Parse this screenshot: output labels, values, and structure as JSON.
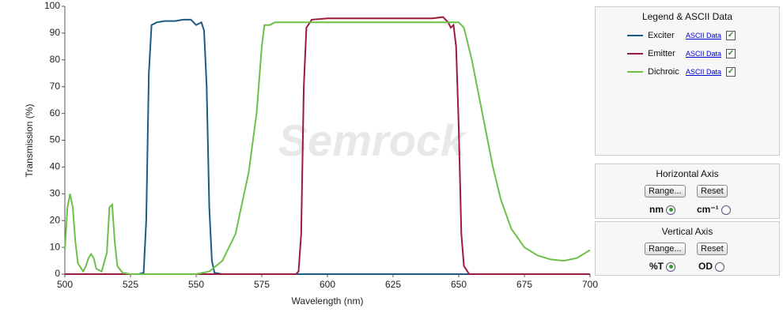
{
  "chart_data": {
    "type": "line",
    "xlabel": "Wavelength (nm)",
    "ylabel": "Transmission (%)",
    "watermark": "Semrock",
    "xlim": [
      500,
      700
    ],
    "xticks": [
      500,
      525,
      550,
      575,
      600,
      625,
      650,
      675,
      700
    ],
    "ylim": [
      0,
      100
    ],
    "yticks": [
      0,
      10,
      20,
      30,
      40,
      50,
      60,
      70,
      80,
      90,
      100
    ],
    "grid": false,
    "series": [
      {
        "name": "Exciter",
        "color": "#1b5a86",
        "x": [
          500,
          528,
          530,
          531,
          532,
          533,
          535,
          538,
          540,
          542,
          545,
          548,
          550,
          551,
          552,
          553,
          554,
          555,
          556,
          557,
          560,
          700
        ],
        "values": [
          0,
          0,
          0.5,
          20,
          75,
          93,
          94,
          94.5,
          94.5,
          94.5,
          95,
          95,
          93,
          93.5,
          94,
          91,
          70,
          25,
          5,
          0.5,
          0,
          0
        ]
      },
      {
        "name": "Emitter",
        "color": "#9b1b3c",
        "x": [
          500,
          588,
          589,
          590,
          591,
          592,
          594,
          600,
          610,
          620,
          630,
          640,
          644,
          646,
          647,
          648,
          649,
          650,
          651,
          652,
          654,
          700
        ],
        "values": [
          0,
          0,
          1,
          15,
          70,
          92,
          95,
          95.5,
          95.5,
          95.5,
          95.5,
          95.5,
          96,
          94,
          92,
          93,
          85,
          55,
          15,
          3,
          0,
          0
        ]
      },
      {
        "name": "Dichroic",
        "color": "#6cc04a",
        "x": [
          500,
          501,
          502,
          503,
          504,
          505,
          507,
          508,
          509,
          510,
          511,
          512,
          514,
          516,
          517,
          518,
          519,
          520,
          522,
          525,
          550,
          555,
          560,
          565,
          570,
          573,
          575,
          576,
          578,
          580,
          590,
          600,
          620,
          640,
          650,
          652,
          655,
          658,
          660,
          663,
          666,
          670,
          675,
          680,
          685,
          690,
          695,
          700
        ],
        "values": [
          9,
          25,
          30,
          25,
          12,
          4,
          1,
          3,
          6,
          7.5,
          6,
          2,
          1,
          8,
          25,
          26,
          12,
          3,
          0.5,
          0,
          0,
          1,
          5,
          15,
          38,
          60,
          85,
          93,
          93,
          94,
          94,
          94,
          94,
          94,
          94,
          92,
          80,
          65,
          55,
          40,
          28,
          17,
          10,
          7,
          5.5,
          5,
          6,
          9
        ]
      }
    ]
  },
  "legend_panel": {
    "title": "Legend & ASCII Data",
    "link_label": "ASCII Data"
  },
  "horizontal_axis_panel": {
    "title": "Horizontal Axis",
    "range_button": "Range...",
    "reset_button": "Reset",
    "options": [
      "nm",
      "cm⁻¹"
    ]
  },
  "vertical_axis_panel": {
    "title": "Vertical  Axis",
    "range_button": "Range...",
    "reset_button": "Reset",
    "options": [
      "%T",
      "OD"
    ]
  }
}
